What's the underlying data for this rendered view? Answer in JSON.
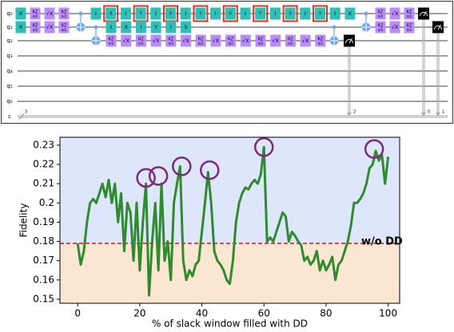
{
  "circuit": {
    "wires": [
      {
        "label": "q₀",
        "gates": [
          "X",
          {
            "name": "RZ",
            "param": "π/2"
          },
          "√X",
          {
            "name": "RZ",
            "param": "π/2"
          },
          "I",
          {
            "name": "X",
            "dd": true
          },
          "I",
          {
            "name": "Y",
            "dd": true
          },
          "I",
          {
            "name": "X",
            "dd": true
          },
          "I",
          {
            "name": "Y",
            "dd": true
          },
          "I",
          {
            "name": "X",
            "dd": true
          },
          "I",
          {
            "name": "Y",
            "dd": true
          },
          "I",
          {
            "name": "X",
            "dd": true
          },
          "I",
          {
            "name": "Y",
            "dd": true
          },
          "I",
          "X",
          {
            "name": "RZ",
            "param": "π/2"
          },
          "√X",
          {
            "name": "RZ",
            "param": "π/2"
          }
        ]
      },
      {
        "label": "q₁",
        "gates": [
          "X",
          {
            "name": "RZ",
            "param": "π/2"
          },
          "√X",
          {
            "name": "RZ",
            "param": "π/2"
          },
          "I",
          "X",
          "I",
          "Y",
          "I",
          "X",
          {
            "name": "RZ",
            "param": "π/2"
          },
          "√X",
          {
            "name": "RZ",
            "param": "π/2"
          }
        ]
      },
      {
        "label": "q₂",
        "gates": [
          {
            "name": "RZ",
            "param": "π/2"
          },
          "√X",
          {
            "name": "RZ",
            "param": "π/2"
          },
          "√X",
          {
            "name": "RZ",
            "param": "π/2"
          },
          "√X",
          {
            "name": "RZ",
            "param": "π/2"
          },
          "√X",
          {
            "name": "RZ",
            "param": "π/2"
          },
          "√X",
          {
            "name": "RZ",
            "param": "π/2"
          },
          "√X",
          {
            "name": "RZ",
            "param": "π/2"
          },
          "√X",
          {
            "name": "RZ",
            "param": "π/2"
          }
        ]
      },
      {
        "label": "q₃",
        "gates": []
      },
      {
        "label": "q₄",
        "gates": []
      },
      {
        "label": "q₅",
        "gates": []
      },
      {
        "label": "q₆",
        "gates": []
      }
    ],
    "classical": {
      "label": "c",
      "size": "3"
    },
    "measures": [
      "2",
      "0",
      "1"
    ]
  },
  "chart_data": {
    "type": "line",
    "y_label": "Fidelity",
    "x_label": "% of slack window filled with DD",
    "x": [
      0,
      1,
      2,
      3,
      4,
      5,
      6,
      7,
      8,
      9,
      10,
      11,
      12,
      13,
      14,
      15,
      16,
      17,
      18,
      19,
      20,
      21,
      22,
      23,
      24,
      25,
      26,
      27,
      28,
      29,
      30,
      31,
      32,
      33,
      34,
      35,
      36,
      37,
      38,
      39,
      40,
      41,
      42,
      43,
      44,
      45,
      46,
      47,
      48,
      49,
      50,
      51,
      52,
      53,
      54,
      55,
      56,
      57,
      58,
      59,
      60,
      61,
      62,
      63,
      64,
      65,
      66,
      67,
      68,
      69,
      70,
      71,
      72,
      73,
      74,
      75,
      76,
      77,
      78,
      79,
      80,
      81,
      82,
      83,
      84,
      85,
      86,
      87,
      88,
      89,
      90,
      91,
      92,
      93,
      94,
      95,
      96,
      97,
      98,
      99,
      100
    ],
    "series": [
      {
        "name": "DD",
        "color": "#2e8b2e",
        "values": [
          0.179,
          0.168,
          0.175,
          0.19,
          0.2,
          0.202,
          0.2,
          0.205,
          0.21,
          0.203,
          0.212,
          0.2,
          0.21,
          0.19,
          0.205,
          0.175,
          0.2,
          0.195,
          0.17,
          0.2,
          0.165,
          0.19,
          0.21,
          0.152,
          0.18,
          0.2,
          0.165,
          0.21,
          0.17,
          0.18,
          0.16,
          0.2,
          0.21,
          0.219,
          0.17,
          0.16,
          0.165,
          0.162,
          0.168,
          0.17,
          0.185,
          0.2,
          0.216,
          0.2,
          0.175,
          0.17,
          0.168,
          0.165,
          0.16,
          0.158,
          0.17,
          0.19,
          0.2,
          0.205,
          0.208,
          0.207,
          0.21,
          0.212,
          0.21,
          0.215,
          0.229,
          0.18,
          0.182,
          0.18,
          0.185,
          0.19,
          0.195,
          0.193,
          0.18,
          0.185,
          0.183,
          0.18,
          0.178,
          0.17,
          0.172,
          0.168,
          0.17,
          0.175,
          0.165,
          0.17,
          0.165,
          0.168,
          0.172,
          0.16,
          0.168,
          0.17,
          0.175,
          0.18,
          0.188,
          0.2,
          0.2,
          0.202,
          0.205,
          0.21,
          0.218,
          0.22,
          0.227,
          0.222,
          0.225,
          0.21,
          0.224
        ]
      }
    ],
    "baseline": {
      "value": 0.179,
      "label": "w/o DD",
      "color": "#dd2222",
      "fill_above": "#dde6fb",
      "fill_below": "#fbe6d2"
    },
    "highlights": {
      "color": "#7b2a7e",
      "x": [
        22,
        26,
        33.5,
        42.5,
        60,
        95.5
      ],
      "y": [
        0.213,
        0.214,
        0.219,
        0.217,
        0.229,
        0.228
      ]
    },
    "xlim": [
      -5.7,
      103.7
    ],
    "ylim": [
      0.1479,
      0.2341
    ],
    "xticks": [
      0,
      20,
      40,
      60,
      80,
      100
    ],
    "yticks": [
      0.15,
      0.16,
      0.17,
      0.18,
      0.19,
      0.2,
      0.21,
      0.22,
      0.23
    ]
  }
}
